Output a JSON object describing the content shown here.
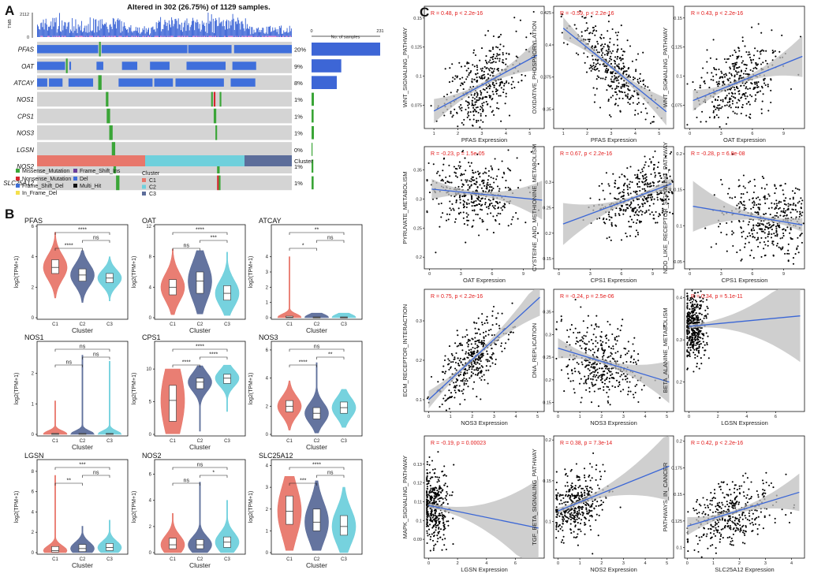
{
  "colors": {
    "c1": "#e8776b",
    "c2": "#5c6d9a",
    "c3": "#6fd0dc",
    "missense": "#3aa537",
    "nonsense": "#d6262f",
    "frameshift_del": "#3d6fd6",
    "inframe_del": "#f4e04d",
    "frameshift_ins": "#6a3d9a",
    "del": "#3f6fdb",
    "multihit": "#111111",
    "grey": "#d4d4d4",
    "fit": "#3a66d6",
    "band": "#bfbfbf",
    "rtext": "#e21b1b"
  },
  "labels": {
    "panelA": "A",
    "panelB": "B",
    "panelC": "C"
  },
  "oncoplot": {
    "title": "Altered in 302 (26.75%) of 1129 samples.",
    "tmb_label": "TMB",
    "tmb_max": "2112",
    "tmb_zero": "0",
    "genes": [
      "PFAS",
      "OAT",
      "ATCAY",
      "NOS1",
      "CPS1",
      "NOS3",
      "LGSN",
      "NOS2",
      "SLC25A12"
    ],
    "percents": [
      "20%",
      "9%",
      "8%",
      "1%",
      "1%",
      "1%",
      "0%",
      "1%",
      "1%"
    ],
    "sample_counts": [
      231,
      100,
      85,
      8,
      7,
      8,
      3,
      6,
      7
    ],
    "bar_axis_min": "0",
    "bar_axis_max": "231",
    "bar_axis_label": "No. of samples",
    "cluster_label": "Cluster",
    "legend_items": [
      "Missense_Mutation",
      "Nonsense_Mutation",
      "Frame_Shift_Del",
      "In_Frame_Del",
      "Frame_Shift_Ins",
      "Del",
      "Multi_Hit"
    ],
    "cluster_legend_title": "Cluster",
    "cluster_legend_items": [
      "C1",
      "C2",
      "C3"
    ]
  },
  "chart_data": [
    {
      "id": "B1",
      "type": "violin",
      "title": "PFAS",
      "ylabel": "log2(TPM+1)",
      "xlabel": "Cluster",
      "categories": [
        "C1",
        "C2",
        "C3"
      ],
      "ylim": [
        0,
        6
      ],
      "yticks": [
        "0",
        "2",
        "4",
        "6"
      ],
      "medians": [
        3.3,
        2.8,
        2.6
      ],
      "q1": [
        2.9,
        2.4,
        2.3
      ],
      "q3": [
        3.8,
        3.2,
        2.9
      ],
      "mins": [
        1.3,
        1.0,
        1.1
      ],
      "maxs": [
        5.6,
        4.4,
        4.0
      ],
      "comparisons": [
        {
          "pair": "C1-C2",
          "sig": "****"
        },
        {
          "pair": "C2-C3",
          "sig": "ns"
        },
        {
          "pair": "C1-C3",
          "sig": "****"
        }
      ]
    },
    {
      "id": "B2",
      "type": "violin",
      "title": "OAT",
      "ylabel": "log2(TPM+1)",
      "xlabel": "Cluster",
      "categories": [
        "C1",
        "C2",
        "C3"
      ],
      "ylim": [
        0,
        12
      ],
      "yticks": [
        "0",
        "4",
        "8",
        "12"
      ],
      "medians": [
        4.0,
        4.8,
        3.2
      ],
      "q1": [
        3.0,
        3.2,
        2.3
      ],
      "q3": [
        5.0,
        6.0,
        4.2
      ],
      "mins": [
        0.4,
        0.5,
        0.3
      ],
      "maxs": [
        9.0,
        8.8,
        8.6
      ],
      "comparisons": [
        {
          "pair": "C1-C2",
          "sig": "ns"
        },
        {
          "pair": "C2-C3",
          "sig": "***"
        },
        {
          "pair": "C1-C3",
          "sig": "****"
        }
      ]
    },
    {
      "id": "B3",
      "type": "violin",
      "title": "ATCAY",
      "ylabel": "log2(TPM+1)",
      "xlabel": "Cluster",
      "categories": [
        "C1",
        "C2",
        "C3"
      ],
      "ylim": [
        0,
        6
      ],
      "yticks": [
        "0",
        "1",
        "2",
        "3",
        "4"
      ],
      "medians": [
        0.03,
        0.02,
        0.02
      ],
      "q1": [
        0.0,
        0.0,
        0.0
      ],
      "q3": [
        0.1,
        0.05,
        0.05
      ],
      "mins": [
        0,
        0,
        0
      ],
      "maxs": [
        4.0,
        0.3,
        0.3
      ],
      "comparisons": [
        {
          "pair": "C1-C2",
          "sig": "*"
        },
        {
          "pair": "C2-C3",
          "sig": "ns"
        },
        {
          "pair": "C1-C3",
          "sig": "**"
        }
      ]
    },
    {
      "id": "B4",
      "type": "violin",
      "title": "NOS1",
      "ylabel": "log2(TPM+1)",
      "xlabel": "Cluster",
      "categories": [
        "C1",
        "C2",
        "C3"
      ],
      "ylim": [
        0,
        3
      ],
      "yticks": [
        "0",
        "1",
        "2"
      ],
      "medians": [
        0.01,
        0.01,
        0.01
      ],
      "q1": [
        0,
        0,
        0
      ],
      "q3": [
        0.03,
        0.03,
        0.03
      ],
      "mins": [
        0,
        0,
        0
      ],
      "maxs": [
        1.1,
        2.6,
        2.4
      ],
      "comparisons": [
        {
          "pair": "C1-C2",
          "sig": "ns"
        },
        {
          "pair": "C2-C3",
          "sig": "ns"
        },
        {
          "pair": "C1-C3",
          "sig": "ns"
        }
      ]
    },
    {
      "id": "B5",
      "type": "violin",
      "title": "CPS1",
      "ylabel": "log2(TPM+1)",
      "xlabel": "Cluster",
      "categories": [
        "C1",
        "C2",
        "C3"
      ],
      "ylim": [
        0,
        14
      ],
      "yticks": [
        "0",
        "5",
        "10"
      ],
      "medians": [
        5.2,
        8.0,
        8.6
      ],
      "q1": [
        2.0,
        7.0,
        7.8
      ],
      "q3": [
        7.5,
        8.6,
        9.2
      ],
      "mins": [
        0.1,
        0.5,
        3.5
      ],
      "maxs": [
        10.0,
        10.5,
        10.6
      ],
      "comparisons": [
        {
          "pair": "C1-C2",
          "sig": "****"
        },
        {
          "pair": "C2-C3",
          "sig": "****"
        },
        {
          "pair": "C1-C3",
          "sig": "****"
        }
      ]
    },
    {
      "id": "B6",
      "type": "violin",
      "title": "NOS3",
      "ylabel": "log2(TPM+1)",
      "xlabel": "Cluster",
      "categories": [
        "C1",
        "C2",
        "C3"
      ],
      "ylim": [
        0,
        6.5
      ],
      "yticks": [
        "0",
        "2",
        "4",
        "6"
      ],
      "medians": [
        2.0,
        1.5,
        1.9
      ],
      "q1": [
        1.6,
        1.1,
        1.5
      ],
      "q3": [
        2.4,
        1.9,
        2.3
      ],
      "mins": [
        0.3,
        0.1,
        0.5
      ],
      "maxs": [
        3.8,
        5.1,
        3.2
      ],
      "comparisons": [
        {
          "pair": "C1-C2",
          "sig": "****"
        },
        {
          "pair": "C2-C3",
          "sig": "**"
        },
        {
          "pair": "C1-C3",
          "sig": "ns"
        }
      ]
    },
    {
      "id": "B7",
      "type": "violin",
      "title": "LGSN",
      "ylabel": "log2(TPM+1)",
      "xlabel": "Cluster",
      "categories": [
        "C1",
        "C2",
        "C3"
      ],
      "ylim": [
        0,
        9
      ],
      "yticks": [
        "0",
        "2",
        "4",
        "6",
        "8"
      ],
      "medians": [
        0.2,
        0.4,
        0.5
      ],
      "q1": [
        0.05,
        0.1,
        0.2
      ],
      "q3": [
        0.6,
        0.8,
        0.9
      ],
      "mins": [
        0,
        0,
        0
      ],
      "maxs": [
        7.6,
        2.6,
        3.2
      ],
      "comparisons": [
        {
          "pair": "C1-C2",
          "sig": "**"
        },
        {
          "pair": "C2-C3",
          "sig": "ns"
        },
        {
          "pair": "C1-C3",
          "sig": "***"
        }
      ]
    },
    {
      "id": "B8",
      "type": "violin",
      "title": "NOS2",
      "ylabel": "log2(TPM+1)",
      "xlabel": "Cluster",
      "categories": [
        "C1",
        "C2",
        "C3"
      ],
      "ylim": [
        0,
        7
      ],
      "yticks": [
        "0",
        "2",
        "4",
        "6"
      ],
      "medians": [
        0.6,
        0.6,
        0.8
      ],
      "q1": [
        0.3,
        0.3,
        0.4
      ],
      "q3": [
        1.1,
        1.0,
        1.2
      ],
      "mins": [
        0,
        0,
        0
      ],
      "maxs": [
        3.0,
        5.4,
        4.0
      ],
      "comparisons": [
        {
          "pair": "C1-C2",
          "sig": "ns"
        },
        {
          "pair": "C2-C3",
          "sig": "*"
        },
        {
          "pair": "C1-C3",
          "sig": "ns"
        }
      ]
    },
    {
      "id": "B9",
      "type": "violin",
      "title": "SLC25A12",
      "ylabel": "log2(TPM+1)",
      "xlabel": "Cluster",
      "categories": [
        "C1",
        "C2",
        "C3"
      ],
      "ylim": [
        0,
        4.2
      ],
      "yticks": [
        "0",
        "1",
        "2",
        "3",
        "4"
      ],
      "medians": [
        1.9,
        1.4,
        1.2
      ],
      "q1": [
        1.3,
        1.0,
        0.8
      ],
      "q3": [
        2.6,
        2.0,
        1.7
      ],
      "mins": [
        0.1,
        0.1,
        0.0
      ],
      "maxs": [
        3.5,
        3.3,
        3.0
      ],
      "comparisons": [
        {
          "pair": "C1-C2",
          "sig": "***"
        },
        {
          "pair": "C2-C3",
          "sig": "ns"
        },
        {
          "pair": "C1-C3",
          "sig": "****"
        }
      ]
    },
    {
      "id": "C1",
      "type": "scatter",
      "xlabel": "PFAS Expression",
      "ylabel": "WNT_SIGNALING_PATHWAY",
      "stat": "R = 0.48, p < 2.2e-16",
      "xlim": [
        0.6,
        5.6
      ],
      "ylim": [
        0.055,
        0.16
      ],
      "xticks": [
        1,
        2,
        3,
        4,
        5
      ],
      "yticks": [
        0.075,
        0.1,
        0.125,
        0.15
      ],
      "fit": [
        [
          1,
          0.07
        ],
        [
          5.3,
          0.118
        ]
      ],
      "cx": 3.0,
      "cy": 0.095,
      "sx": 0.8,
      "sy": 0.016,
      "n": 400
    },
    {
      "id": "C2",
      "type": "scatter",
      "xlabel": "PFAS Expression",
      "ylabel": "OXIDATIVE_PHOSPHORYLATION",
      "stat": "R = -0.59, p < 2.2e-16",
      "xlim": [
        0.6,
        5.6
      ],
      "ylim": [
        0.335,
        0.43
      ],
      "xticks": [
        1,
        2,
        3,
        4,
        5
      ],
      "yticks": [
        0.35,
        0.375,
        0.4,
        0.425
      ],
      "fit": [
        [
          1,
          0.413
        ],
        [
          5.3,
          0.348
        ]
      ],
      "cx": 3.0,
      "cy": 0.385,
      "sx": 0.8,
      "sy": 0.013,
      "n": 400
    },
    {
      "id": "C3",
      "type": "scatter",
      "xlabel": "OAT Expression",
      "ylabel": "WNT_SIGNALING_PATHWAY",
      "stat": "R = 0.43, p < 2.2e-16",
      "xlim": [
        -0.5,
        11
      ],
      "ylim": [
        0.055,
        0.16
      ],
      "xticks": [
        0,
        3,
        6,
        9
      ],
      "yticks": [
        0.075,
        0.1,
        0.125,
        0.15
      ],
      "fit": [
        [
          0.3,
          0.079
        ],
        [
          10.8,
          0.117
        ]
      ],
      "cx": 4.5,
      "cy": 0.095,
      "sx": 2.0,
      "sy": 0.016,
      "n": 400
    },
    {
      "id": "C4",
      "type": "scatter",
      "xlabel": "OAT Expression",
      "ylabel": "PYRUVATE_METABOLISM",
      "stat": "R = -0.23, p = 1.5e-05",
      "xlim": [
        -0.5,
        11
      ],
      "ylim": [
        0.18,
        0.39
      ],
      "xticks": [
        0,
        3,
        6,
        9
      ],
      "yticks": [
        0.2,
        0.25,
        0.3,
        0.35
      ],
      "fit": [
        [
          0.2,
          0.317
        ],
        [
          10.8,
          0.298
        ]
      ],
      "cx": 4.5,
      "cy": 0.31,
      "sx": 2.2,
      "sy": 0.03,
      "n": 400
    },
    {
      "id": "C5",
      "type": "scatter",
      "xlabel": "CPS1 Expression",
      "ylabel": "CYSTEINE_AND_METHIONINE_METABOLISM",
      "stat": "R = 0.67, p < 2.2e-16",
      "xlim": [
        -0.5,
        11
      ],
      "ylim": [
        0.13,
        0.37
      ],
      "xticks": [
        0,
        3,
        6,
        9
      ],
      "yticks": [
        0.15,
        0.2,
        0.25,
        0.3
      ],
      "fit": [
        [
          0.4,
          0.218
        ],
        [
          10.8,
          0.297
        ]
      ],
      "cx": 7.5,
      "cy": 0.27,
      "sx": 2.0,
      "sy": 0.03,
      "n": 400
    },
    {
      "id": "C6",
      "type": "scatter",
      "xlabel": "CPS1 Expression",
      "ylabel": "NOD_LIKE_RECEPTOR_SIGNALING_PATHWAY",
      "stat": "R = -0.28, p = 6.8e-08",
      "xlim": [
        -0.5,
        11
      ],
      "ylim": [
        0.04,
        0.21
      ],
      "xticks": [
        0,
        3,
        6,
        9
      ],
      "yticks": [
        0.05,
        0.1,
        0.15,
        0.2
      ],
      "fit": [
        [
          0.3,
          0.127
        ],
        [
          10.8,
          0.101
        ]
      ],
      "cx": 7.5,
      "cy": 0.11,
      "sx": 2.3,
      "sy": 0.025,
      "n": 400
    },
    {
      "id": "C7",
      "type": "scatter",
      "xlabel": "NOS3 Expression",
      "ylabel": "ECM_RECEPTOR_INTERACTION",
      "stat": "R = 0.75, p < 2.2e-16",
      "xlim": [
        -0.2,
        5.3
      ],
      "ylim": [
        0.07,
        0.38
      ],
      "xticks": [
        0,
        1,
        2,
        3,
        4,
        5
      ],
      "yticks": [
        0.1,
        0.2,
        0.3
      ],
      "fit": [
        [
          0,
          0.1
        ],
        [
          5.1,
          0.36
        ]
      ],
      "cx": 2.0,
      "cy": 0.2,
      "sx": 0.8,
      "sy": 0.04,
      "n": 400
    },
    {
      "id": "C8",
      "type": "scatter",
      "xlabel": "NOS3 Expression",
      "ylabel": "DNA_REPLICATION",
      "stat": "R = -0.24, p = 2.5e-06",
      "xlim": [
        -0.2,
        5.3
      ],
      "ylim": [
        0.13,
        0.4
      ],
      "xticks": [
        0,
        1,
        2,
        3,
        4,
        5
      ],
      "yticks": [
        0.15,
        0.2,
        0.25,
        0.3,
        0.35
      ],
      "fit": [
        [
          0,
          0.27
        ],
        [
          5.1,
          0.195
        ]
      ],
      "cx": 2.0,
      "cy": 0.24,
      "sx": 0.9,
      "sy": 0.04,
      "n": 400
    },
    {
      "id": "C9",
      "type": "scatter",
      "xlabel": "LGSN Expression",
      "ylabel": "BETA_ALANINE_METABOLISM",
      "stat": "R = 0.34, p = 5.1e-11",
      "xlim": [
        -0.3,
        8
      ],
      "ylim": [
        0.13,
        0.42
      ],
      "xticks": [
        0,
        2,
        4,
        6
      ],
      "yticks": [
        0.2,
        0.3,
        0.4
      ],
      "fit": [
        [
          0,
          0.332
        ],
        [
          7.7,
          0.357
        ]
      ],
      "cx": 0.3,
      "cy": 0.33,
      "sx": 0.4,
      "sy": 0.04,
      "n": 400
    },
    {
      "id": "C10",
      "type": "scatter",
      "xlabel": "LGSN Expression",
      "ylabel": "MAPK_SIGNALING_PATHWAY",
      "stat": "R = -0.19, p = 0.00023",
      "xlim": [
        -0.3,
        8
      ],
      "ylim": [
        0.08,
        0.145
      ],
      "xticks": [
        0,
        2,
        4,
        6
      ],
      "yticks": [
        0.09,
        0.1,
        0.11,
        0.12,
        0.13
      ],
      "fit": [
        [
          0,
          0.108
        ],
        [
          7.6,
          0.096
        ]
      ],
      "cx": 0.4,
      "cy": 0.109,
      "sx": 0.5,
      "sy": 0.01,
      "n": 400
    },
    {
      "id": "C11",
      "type": "scatter",
      "xlabel": "NOS2 Expression",
      "ylabel": "TGF_BETA_SIGNALING_PATHWAY",
      "stat": "R = 0.38, p = 7.3e-14",
      "xlim": [
        -0.2,
        5.3
      ],
      "ylim": [
        0.055,
        0.205
      ],
      "xticks": [
        0,
        1,
        2,
        3,
        4,
        5
      ],
      "yticks": [
        0.1,
        0.15,
        0.2
      ],
      "fit": [
        [
          0,
          0.113
        ],
        [
          5.1,
          0.168
        ]
      ],
      "cx": 0.8,
      "cy": 0.12,
      "sx": 0.6,
      "sy": 0.02,
      "n": 400
    },
    {
      "id": "C12",
      "type": "scatter",
      "xlabel": "SLC25A12 Expression",
      "ylabel": "PATHWAYS_IN_CANCER",
      "stat": "R = 0.42, p < 2.2e-16",
      "xlim": [
        -0.1,
        4.5
      ],
      "ylim": [
        0.09,
        0.205
      ],
      "xticks": [
        0,
        1,
        2,
        3,
        4
      ],
      "yticks": [
        0.1,
        0.125,
        0.15,
        0.175,
        0.2
      ],
      "fit": [
        [
          0,
          0.12
        ],
        [
          4.3,
          0.152
        ]
      ],
      "cx": 1.7,
      "cy": 0.135,
      "sx": 0.8,
      "sy": 0.015,
      "n": 400
    }
  ]
}
